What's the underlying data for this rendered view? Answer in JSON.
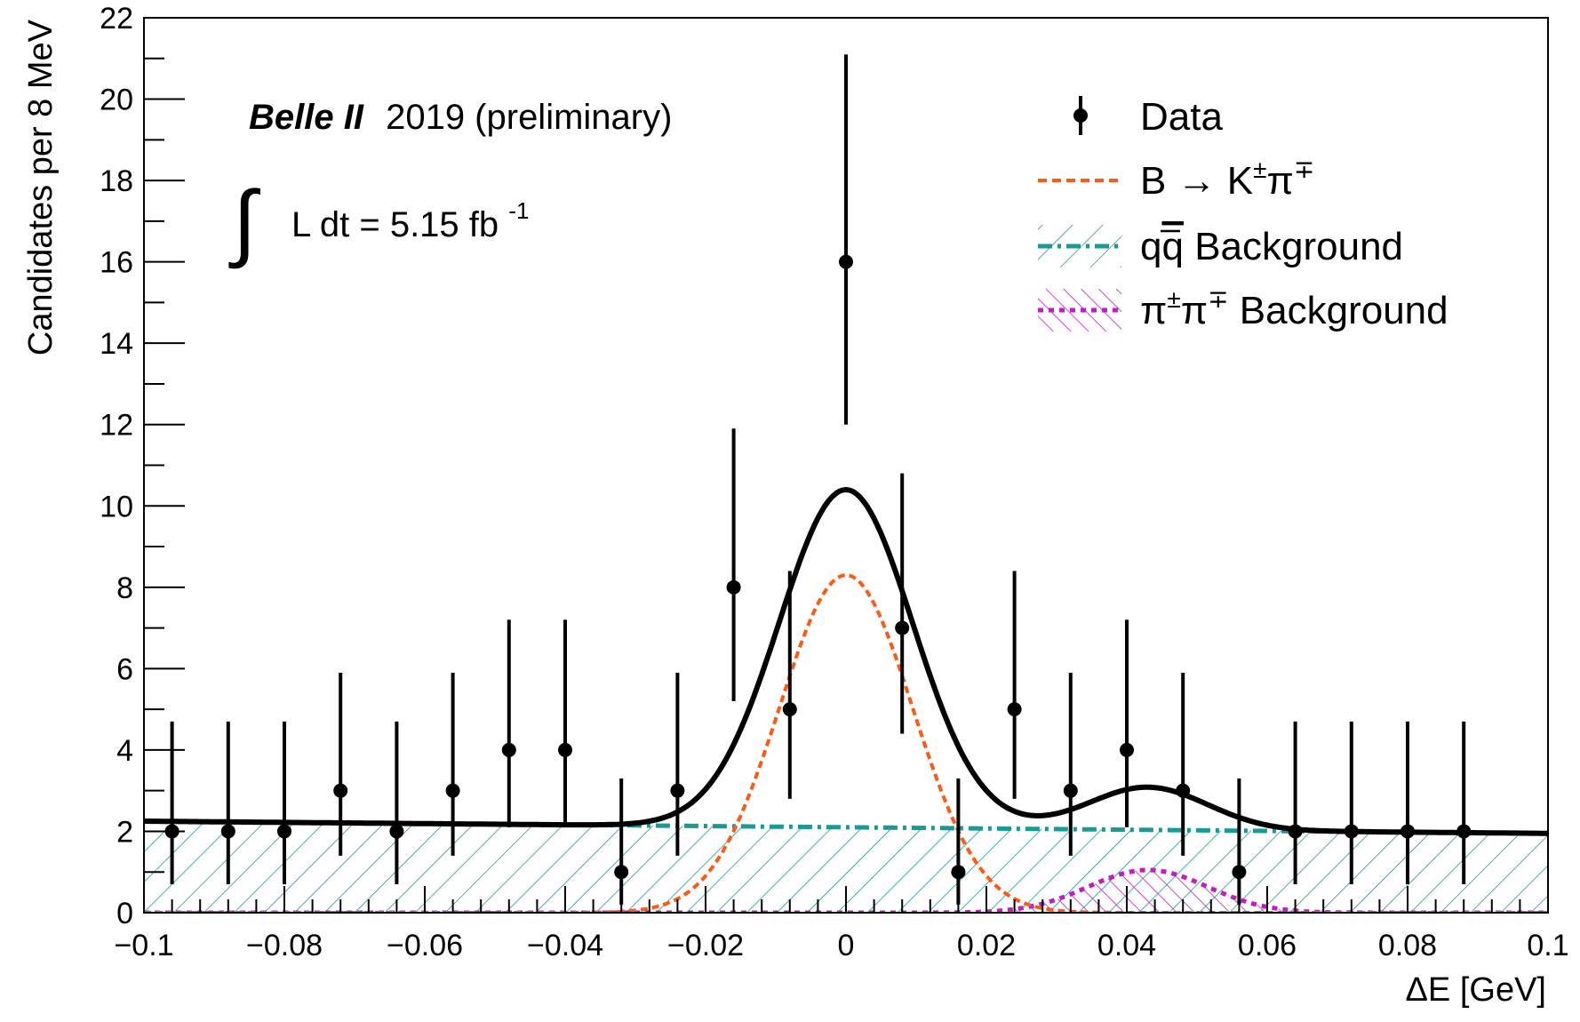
{
  "chart_data": {
    "type": "scatter",
    "experiment": "Belle II",
    "title_rest": "2019 (preliminary)",
    "lumi_text": "L dt = 5.15 fb",
    "lumi_sup": "-1",
    "lumi_integral": "∫",
    "xlabel": "ΔE [GeV]",
    "ylabel": "Candidates per 8 MeV",
    "xlim": [
      -0.1,
      0.1
    ],
    "ylim": [
      0,
      22
    ],
    "xticks": [
      -0.1,
      -0.08,
      -0.06,
      -0.04,
      -0.02,
      0,
      0.02,
      0.04,
      0.06,
      0.08,
      0.1
    ],
    "xtick_labels": [
      "−0.1",
      "−0.08",
      "−0.06",
      "−0.04",
      "−0.02",
      "0",
      "0.02",
      "0.04",
      "0.06",
      "0.08",
      "0.1"
    ],
    "yticks": [
      0,
      2,
      4,
      6,
      8,
      10,
      12,
      14,
      16,
      18,
      20,
      22
    ],
    "ytick_labels": [
      "0",
      "2",
      "4",
      "6",
      "8",
      "10",
      "12",
      "14",
      "16",
      "18",
      "20",
      "22"
    ],
    "data_points": {
      "x": [
        -0.096,
        -0.088,
        -0.08,
        -0.072,
        -0.064,
        -0.056,
        -0.048,
        -0.04,
        -0.032,
        -0.024,
        -0.016,
        -0.008,
        0.0,
        0.008,
        0.016,
        0.024,
        0.032,
        0.04,
        0.048,
        0.056,
        0.064,
        0.072,
        0.08,
        0.088
      ],
      "y": [
        2,
        2,
        2,
        3,
        2,
        3,
        4,
        4,
        1,
        3,
        8,
        5,
        16,
        7,
        1,
        5,
        3,
        4,
        3,
        1,
        2,
        2,
        2,
        2
      ],
      "err_low": [
        1.3,
        1.3,
        1.3,
        1.6,
        1.3,
        1.6,
        1.9,
        1.9,
        0.8,
        1.6,
        2.8,
        2.2,
        4.0,
        2.6,
        0.8,
        2.2,
        1.6,
        1.9,
        1.6,
        0.8,
        1.3,
        1.3,
        1.3,
        1.3
      ],
      "err_high": [
        2.7,
        2.7,
        2.7,
        2.9,
        2.7,
        2.9,
        3.2,
        3.2,
        2.3,
        2.9,
        3.9,
        3.4,
        5.1,
        3.8,
        2.3,
        3.4,
        2.9,
        3.2,
        2.9,
        2.3,
        2.7,
        2.7,
        2.7,
        2.7
      ]
    },
    "model": {
      "qq_background": {
        "start": 2.25,
        "end": 1.95
      },
      "signal": {
        "mean": 0.0,
        "sigma": 0.0095,
        "amplitude": 8.3
      },
      "pipi_background": {
        "mean": 0.043,
        "sigma": 0.0085,
        "amplitude": 1.05
      }
    },
    "legend": {
      "position": "top-right",
      "entries": [
        {
          "label": "Data",
          "style": "marker"
        },
        {
          "label": "B → K",
          "sup": "±",
          "mid": "π",
          "sup2": "∓",
          "style": "signal"
        },
        {
          "label": "q",
          "over": "q",
          "rest": " Background",
          "style": "qq"
        },
        {
          "label": "π",
          "sup": "±",
          "mid": "π",
          "sup2": "∓",
          "rest": " Background",
          "style": "pipi"
        }
      ]
    },
    "colors": {
      "data": "#000000",
      "total_fit": "#000000",
      "signal": "#ff5a14",
      "qq": "#1a9a96",
      "pipi": "#c21cc4"
    }
  }
}
